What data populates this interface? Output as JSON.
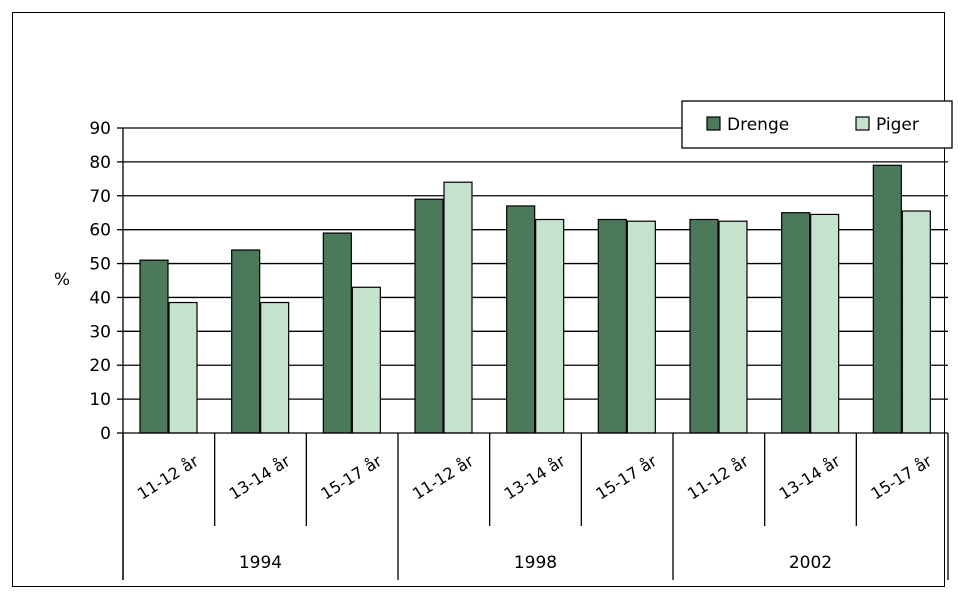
{
  "chart_data": {
    "type": "bar",
    "ylabel": "%",
    "ylim": [
      0,
      90
    ],
    "yticks": [
      0,
      10,
      20,
      30,
      40,
      50,
      60,
      70,
      80,
      90
    ],
    "grid": true,
    "legend_position": "top-right",
    "groups": [
      {
        "label": "1994",
        "categories": [
          "11-12 år",
          "13-14 år",
          "15-17 år"
        ]
      },
      {
        "label": "1998",
        "categories": [
          "11-12 år",
          "13-14 år",
          "15-17 år"
        ]
      },
      {
        "label": "2002",
        "categories": [
          "11-12 år",
          "13-14 år",
          "15-17 år"
        ]
      }
    ],
    "categories": [
      "11-12 år",
      "13-14 år",
      "15-17 år",
      "11-12 år",
      "13-14 år",
      "15-17 år",
      "11-12 år",
      "13-14 år",
      "15-17 år"
    ],
    "series": [
      {
        "name": "Drenge",
        "color": "#4a7a5a",
        "values": [
          51,
          54,
          59,
          69,
          67,
          63,
          63,
          65,
          79
        ]
      },
      {
        "name": "Piger",
        "color": "#c5e3cc",
        "values": [
          38.5,
          38.5,
          43,
          74,
          63,
          62.5,
          62.5,
          64.5,
          65.5
        ]
      }
    ]
  }
}
